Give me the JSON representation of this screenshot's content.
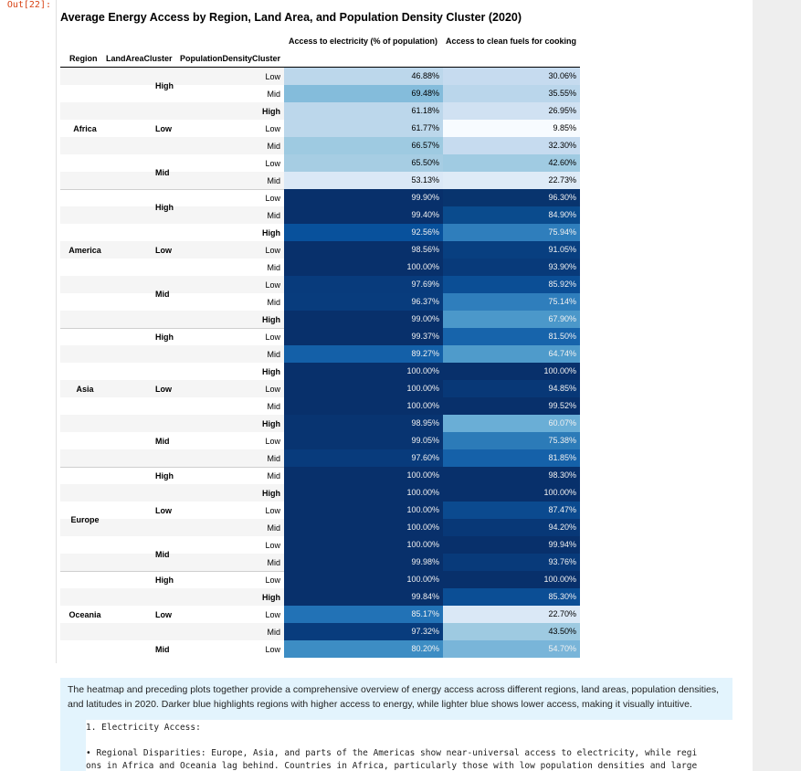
{
  "prompt": "Out[22]:",
  "title": "Average Energy Access by Region, Land Area, and Population Density Cluster (2020)",
  "column_headers": {
    "electricity": "Access to electricity (% of population)",
    "clean_fuels": "Access to clean fuels for cooking"
  },
  "index_headers": [
    "Region",
    "LandAreaCluster",
    "PopulationDensityCluster"
  ],
  "regions": [
    {
      "label": "Africa",
      "row": 3
    },
    {
      "label": "America",
      "row": 10
    },
    {
      "label": "Asia",
      "row": 18
    },
    {
      "label": "Europe",
      "row": 25.5
    },
    {
      "label": "Oceania",
      "row": 31
    }
  ],
  "land_labels": [
    {
      "label": "High",
      "row": 0.5
    },
    {
      "label": "Low",
      "row": 3
    },
    {
      "label": "Mid",
      "row": 5.5
    },
    {
      "label": "High",
      "row": 7.5
    },
    {
      "label": "Low",
      "row": 10
    },
    {
      "label": "Mid",
      "row": 12.5
    },
    {
      "label": "High",
      "row": 15
    },
    {
      "label": "Low",
      "row": 18
    },
    {
      "label": "Mid",
      "row": 21
    },
    {
      "label": "High",
      "row": 23
    },
    {
      "label": "Low",
      "row": 25
    },
    {
      "label": "Mid",
      "row": 27.5
    },
    {
      "label": "High",
      "row": 29
    },
    {
      "label": "Low",
      "row": 31
    },
    {
      "label": "Mid",
      "row": 33
    }
  ],
  "rows": [
    {
      "density": "Low",
      "elec": "46.88%",
      "fuel": "30.06%",
      "ec": "#bcd7eb",
      "fc": "#c6dbef",
      "el": false,
      "fl": false
    },
    {
      "density": "Mid",
      "elec": "69.48%",
      "fuel": "35.55%",
      "ec": "#84bcdb",
      "fc": "#bad6eb",
      "el": false,
      "fl": false
    },
    {
      "density": "High",
      "elec": "61.18%",
      "fuel": "26.95%",
      "ec": "#bcd7eb",
      "fc": "#d0e1f2",
      "el": false,
      "fl": false
    },
    {
      "density": "Low",
      "elec": "61.77%",
      "fuel": "9.85%",
      "ec": "#bcd7eb",
      "fc": "#f7fbff",
      "el": false,
      "fl": false
    },
    {
      "density": "Mid",
      "elec": "66.57%",
      "fuel": "32.30%",
      "ec": "#9ecae1",
      "fc": "#c6dbef",
      "el": false,
      "fl": false
    },
    {
      "density": "Low",
      "elec": "65.50%",
      "fuel": "42.60%",
      "ec": "#a6cde3",
      "fc": "#a0cbe2",
      "el": false,
      "fl": false
    },
    {
      "density": "Mid",
      "elec": "53.13%",
      "fuel": "22.73%",
      "ec": "#dae8f6",
      "fc": "#deebf7",
      "el": false,
      "fl": false
    },
    {
      "density": "Low",
      "elec": "99.90%",
      "fuel": "96.30%",
      "ec": "#08306b",
      "fc": "#08346e",
      "el": true,
      "fl": true
    },
    {
      "density": "Mid",
      "elec": "99.40%",
      "fuel": "84.90%",
      "ec": "#08306b",
      "fc": "#0a4b8d",
      "el": true,
      "fl": true
    },
    {
      "density": "High",
      "elec": "92.56%",
      "fuel": "75.94%",
      "ec": "#08519c",
      "fc": "#2f7ebc",
      "el": true,
      "fl": true
    },
    {
      "density": "Low",
      "elec": "98.56%",
      "fuel": "91.05%",
      "ec": "#08306b",
      "fc": "#083f80",
      "el": true,
      "fl": true
    },
    {
      "density": "Mid",
      "elec": "100.00%",
      "fuel": "93.90%",
      "ec": "#08306b",
      "fc": "#083a7a",
      "el": true,
      "fl": true
    },
    {
      "density": "Low",
      "elec": "97.69%",
      "fuel": "85.92%",
      "ec": "#083b7c",
      "fc": "#0b4e95",
      "el": true,
      "fl": true
    },
    {
      "density": "Mid",
      "elec": "96.37%",
      "fuel": "75.14%",
      "ec": "#083c7d",
      "fc": "#2f7ebc",
      "el": true,
      "fl": true
    },
    {
      "density": "High",
      "elec": "99.00%",
      "fuel": "67.90%",
      "ec": "#08306b",
      "fc": "#4b98ca",
      "el": true,
      "fl": true
    },
    {
      "density": "Low",
      "elec": "99.37%",
      "fuel": "81.50%",
      "ec": "#08306b",
      "fc": "#1764ab",
      "el": true,
      "fl": true
    },
    {
      "density": "Mid",
      "elec": "89.27%",
      "fuel": "64.74%",
      "ec": "#1460a8",
      "fc": "#4f9bcb",
      "el": true,
      "fl": true
    },
    {
      "density": "High",
      "elec": "100.00%",
      "fuel": "100.00%",
      "ec": "#08306b",
      "fc": "#08306b",
      "el": true,
      "fl": true
    },
    {
      "density": "Low",
      "elec": "100.00%",
      "fuel": "94.85%",
      "ec": "#08306b",
      "fc": "#083877",
      "el": true,
      "fl": true
    },
    {
      "density": "Mid",
      "elec": "100.00%",
      "fuel": "99.52%",
      "ec": "#08306b",
      "fc": "#08306b",
      "el": true,
      "fl": true
    },
    {
      "density": "High",
      "elec": "98.95%",
      "fuel": "60.07%",
      "ec": "#083471",
      "fc": "#6aaed6",
      "el": true,
      "fl": true
    },
    {
      "density": "Low",
      "elec": "99.05%",
      "fuel": "75.38%",
      "ec": "#083471",
      "fc": "#2c7bb8",
      "el": true,
      "fl": true
    },
    {
      "density": "Mid",
      "elec": "97.60%",
      "fuel": "81.85%",
      "ec": "#083b7c",
      "fc": "#1561a9",
      "el": true,
      "fl": true
    },
    {
      "density": "Mid",
      "elec": "100.00%",
      "fuel": "98.30%",
      "ec": "#08306b",
      "fc": "#08306b",
      "el": true,
      "fl": true
    },
    {
      "density": "High",
      "elec": "100.00%",
      "fuel": "100.00%",
      "ec": "#08306b",
      "fc": "#08306b",
      "el": true,
      "fl": true
    },
    {
      "density": "Low",
      "elec": "100.00%",
      "fuel": "87.47%",
      "ec": "#08306b",
      "fc": "#0b4a8f",
      "el": true,
      "fl": true
    },
    {
      "density": "Mid",
      "elec": "100.00%",
      "fuel": "94.20%",
      "ec": "#08306b",
      "fc": "#083877",
      "el": true,
      "fl": true
    },
    {
      "density": "Low",
      "elec": "100.00%",
      "fuel": "99.94%",
      "ec": "#08306b",
      "fc": "#08306b",
      "el": true,
      "fl": true
    },
    {
      "density": "Mid",
      "elec": "99.98%",
      "fuel": "93.76%",
      "ec": "#08306b",
      "fc": "#083a7a",
      "el": true,
      "fl": true
    },
    {
      "density": "Low",
      "elec": "100.00%",
      "fuel": "100.00%",
      "ec": "#08306b",
      "fc": "#08306b",
      "el": true,
      "fl": true
    },
    {
      "density": "High",
      "elec": "99.84%",
      "fuel": "85.30%",
      "ec": "#08306b",
      "fc": "#0b4e95",
      "el": true,
      "fl": true
    },
    {
      "density": "Low",
      "elec": "85.17%",
      "fuel": "22.70%",
      "ec": "#2272b6",
      "fc": "#dae8f6",
      "el": true,
      "fl": false
    },
    {
      "density": "Mid",
      "elec": "97.32%",
      "fuel": "43.50%",
      "ec": "#083c7d",
      "fc": "#9ecae1",
      "el": true,
      "fl": false
    },
    {
      "density": "Low",
      "elec": "80.20%",
      "fuel": "54.70%",
      "ec": "#3d8dc4",
      "fc": "#79b5d9",
      "el": true,
      "fl": true
    }
  ],
  "markdown": {
    "paragraph": "The heatmap and preceding plots together provide a comprehensive overview of energy access across different regions, land areas, population densities, and latitudes in 2020. Darker blue highlights regions with higher access to energy, while lighter blue shows lower access, making it visually intuitive.",
    "code_lines": [
      "1. Electricity Access:",
      "",
      "• Regional Disparities: Europe, Asia, and parts of the Americas show near-universal access to electricity, while regi",
      "ons in Africa and Oceania lag behind. Countries in Africa, particularly those with low population densities and large"
    ]
  }
}
